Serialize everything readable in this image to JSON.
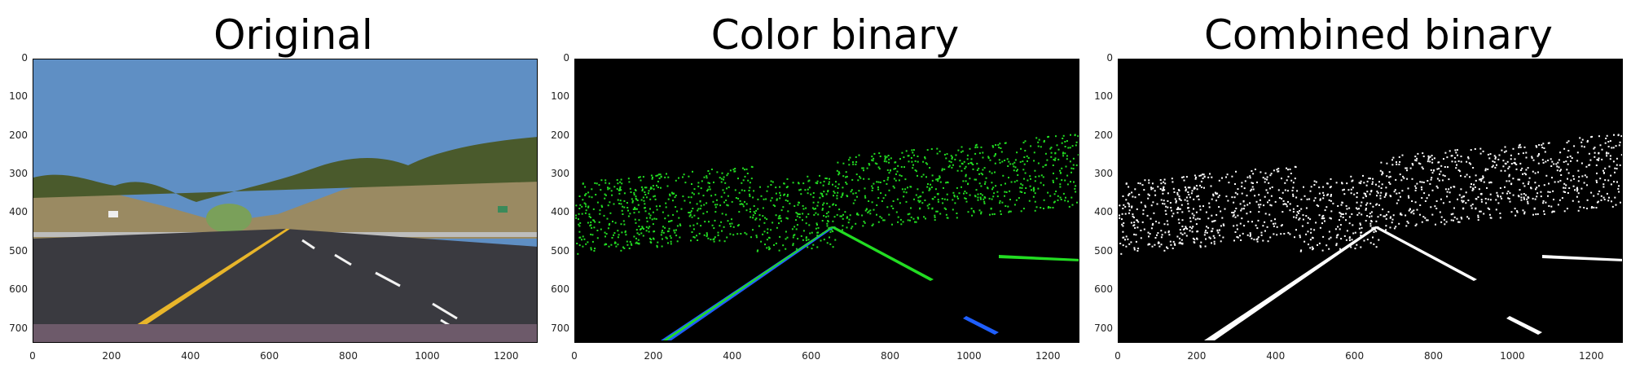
{
  "panels": [
    {
      "title": "Original",
      "key": "original"
    },
    {
      "title": "Color binary",
      "key": "color"
    },
    {
      "title": "Combined binary",
      "key": "combined"
    }
  ],
  "axes": {
    "y_ticks": [
      "0",
      "100",
      "200",
      "300",
      "400",
      "500",
      "600",
      "700"
    ],
    "x_ticks": [
      "0",
      "200",
      "400",
      "600",
      "800",
      "1000",
      "1200"
    ]
  },
  "colors": {
    "sky": "#5f8fc4",
    "road": "#3a3a40",
    "lane_yellow": "#e8b52a",
    "lane_white": "#f2f2f2",
    "green_edges": "#22dd22",
    "blue_lane": "#1f5fff",
    "white_binary": "#ffffff",
    "black_bg": "#000000"
  }
}
